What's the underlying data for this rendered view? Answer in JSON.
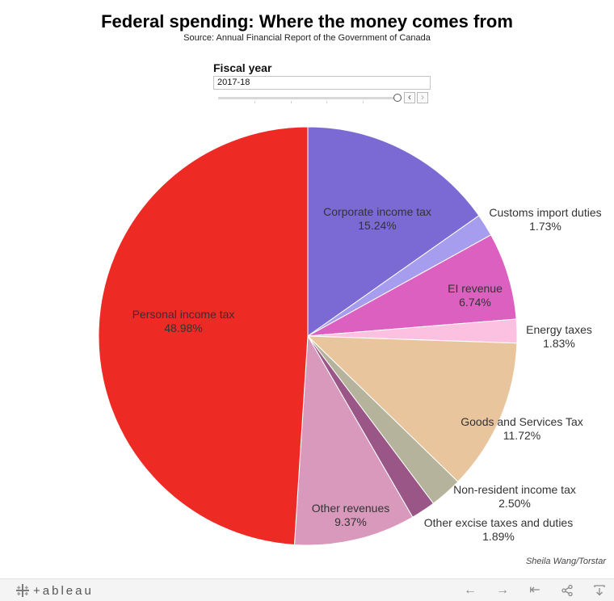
{
  "title": "Federal spending: Where the money comes from",
  "subtitle": "Source: Annual Financial Report of the Government of Canada",
  "fiscal_year": {
    "label": "Fiscal year",
    "selected": "2017-18"
  },
  "credit": "Sheila Wang/Torstar",
  "footer": {
    "logo_text": "+ableau",
    "undo_icon": "←",
    "redo_icon": "→",
    "revert_icon": "⇤",
    "share_icon": "share-icon",
    "download_icon": "download-icon"
  },
  "chart_data": {
    "type": "pie",
    "title": "Federal spending: Where the money comes from",
    "legend": "none",
    "slices": [
      {
        "name": "Corporate income tax",
        "value": 15.24,
        "label_value": "15.24%",
        "color": "#7b6ad4"
      },
      {
        "name": "Customs import duties",
        "value": 1.73,
        "label_value": "1.73%",
        "color": "#a79def"
      },
      {
        "name": "EI revenue",
        "value": 6.74,
        "label_value": "6.74%",
        "color": "#dc60bf"
      },
      {
        "name": "Energy taxes",
        "value": 1.83,
        "label_value": "1.83%",
        "color": "#fcc0e1"
      },
      {
        "name": "Goods and Services Tax",
        "value": 11.72,
        "label_value": "11.72%",
        "color": "#e9c59e"
      },
      {
        "name": "Non-resident income tax",
        "value": 2.5,
        "label_value": "2.50%",
        "color": "#b5b39b"
      },
      {
        "name": "Other excise taxes and duties",
        "value": 1.89,
        "label_value": "1.89%",
        "color": "#9b5688"
      },
      {
        "name": "Other revenues",
        "value": 9.37,
        "label_value": "9.37%",
        "color": "#d899bc"
      },
      {
        "name": "Personal income tax",
        "value": 48.98,
        "label_value": "48.98%",
        "color": "#ee2a24"
      }
    ]
  }
}
